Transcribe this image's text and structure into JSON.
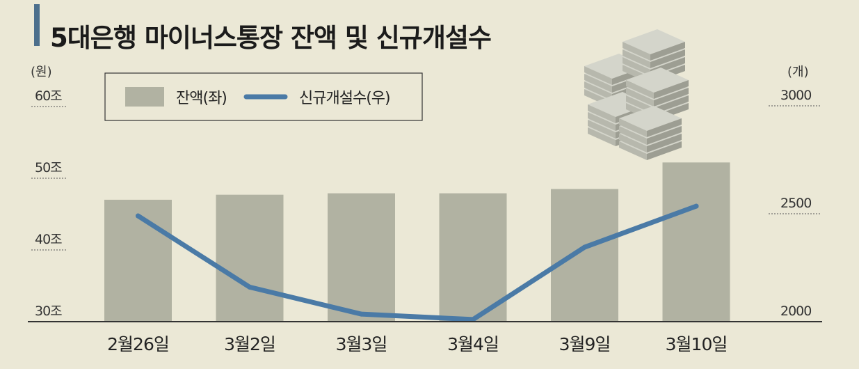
{
  "title": "5대은행 마이너스통장 잔액 및 신규개설수",
  "colors": {
    "background": "#ebe8d6",
    "title_bar": "#4c6f8c",
    "bar": "#b1b2a2",
    "line": "#4a7aa6",
    "axis": "#333333"
  },
  "chart_data": {
    "type": "bar+line",
    "categories": [
      "2월26일",
      "3월2일",
      "3월3일",
      "3월4일",
      "3월9일",
      "3월10일"
    ],
    "series": [
      {
        "name": "잔액(좌)",
        "type": "bar",
        "axis": "left",
        "values": [
          47.0,
          47.7,
          47.9,
          47.9,
          48.5,
          52.2
        ]
      },
      {
        "name": "신규개설수(우)",
        "type": "line",
        "axis": "right",
        "values": [
          2490,
          2160,
          2035,
          2010,
          2345,
          2535
        ]
      }
    ],
    "left_axis": {
      "unit": "(원)",
      "ylim": [
        30,
        65
      ],
      "ticks": [
        {
          "value": 30,
          "label": "30조"
        },
        {
          "value": 40,
          "label": "40조"
        },
        {
          "value": 50,
          "label": "50조"
        },
        {
          "value": 60,
          "label": "60조"
        }
      ]
    },
    "right_axis": {
      "unit": "(개)",
      "ylim": [
        2000,
        3000
      ],
      "ticks": [
        {
          "value": 2000,
          "label": "2000"
        },
        {
          "value": 2500,
          "label": "2500"
        },
        {
          "value": 3000,
          "label": "3000"
        }
      ]
    },
    "legend": {
      "position": "top-left",
      "items": [
        "잔액(좌)",
        "신규개설수(우)"
      ]
    },
    "grid": false
  }
}
